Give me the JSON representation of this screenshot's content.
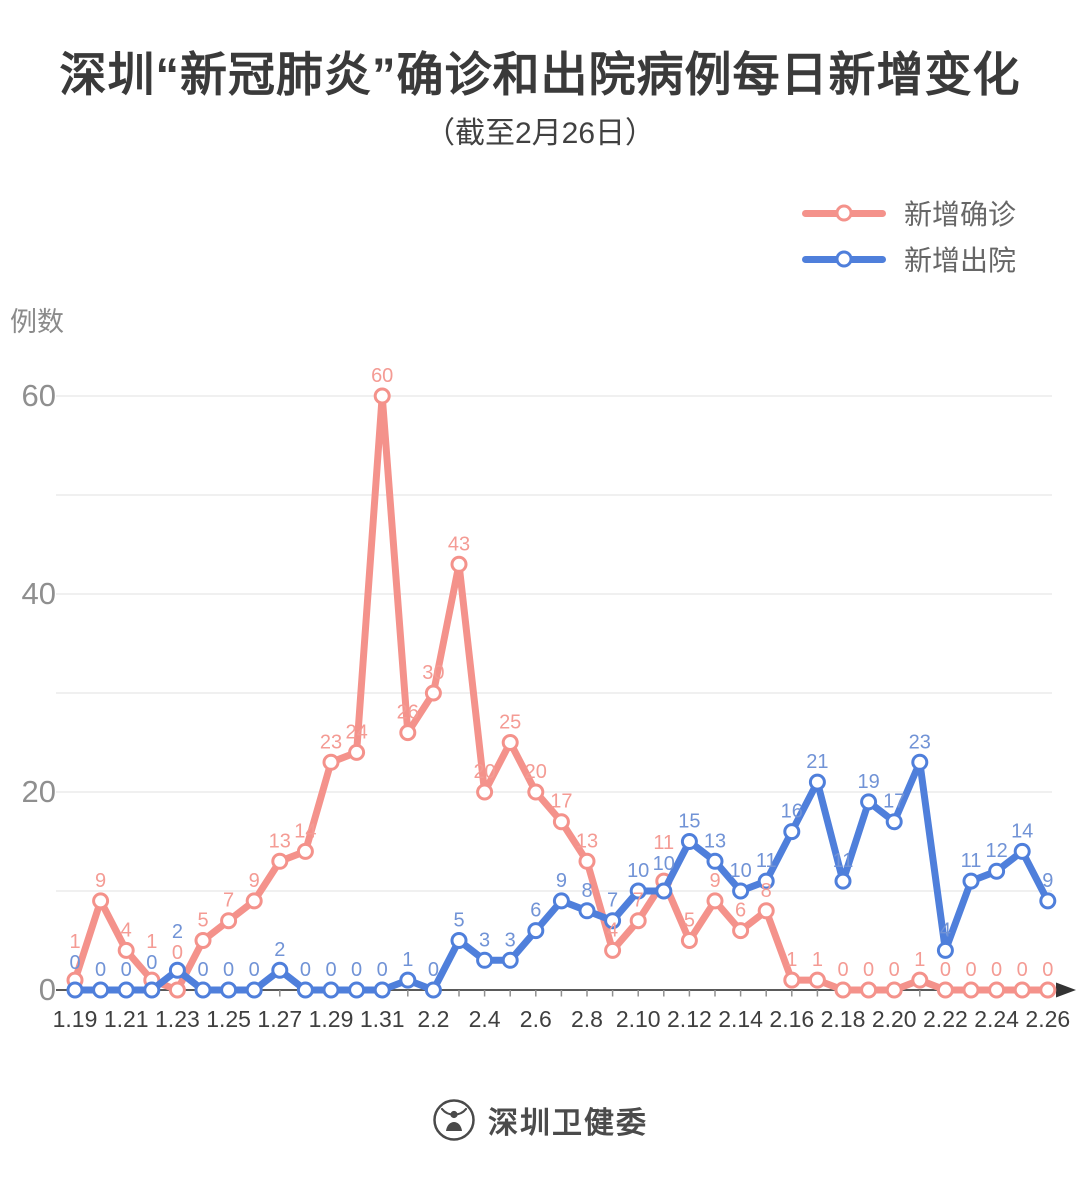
{
  "title": "深圳“新冠肺炎”确诊和出院病例每日新增变化",
  "subtitle": "（截至2月26日）",
  "y_axis_unit": "例数",
  "footer": {
    "source": "深圳卫健委"
  },
  "colors": {
    "confirmed": "#f4928b",
    "confirmed_label": "#f49b94",
    "discharged": "#4f7fdb",
    "discharged_label": "#7193d6",
    "grid": "#e8e8e8",
    "axis": "#5a5a5a",
    "x_tick_label": "#3f3f3f",
    "y_tick_label": "#8f8f8f"
  },
  "chart_data": {
    "type": "line",
    "title": "深圳“新冠肺炎”确诊和出院病例每日新增变化",
    "subtitle": "（截至2月26日）",
    "ylabel": "例数",
    "xlabel": "",
    "ylim": [
      0,
      60
    ],
    "yticks": [
      0,
      20,
      40,
      60
    ],
    "y_gridline_interval": 10,
    "grid": true,
    "legend_position": "top-right",
    "x_labels_shown_every": 2,
    "x": [
      "1.19",
      "1.20",
      "1.21",
      "1.22",
      "1.23",
      "1.24",
      "1.25",
      "1.26",
      "1.27",
      "1.28",
      "1.29",
      "1.30",
      "1.31",
      "2.1",
      "2.2",
      "2.3",
      "2.4",
      "2.5",
      "2.6",
      "2.7",
      "2.8",
      "2.9",
      "2.10",
      "2.11",
      "2.12",
      "2.13",
      "2.14",
      "2.15",
      "2.16",
      "2.17",
      "2.18",
      "2.19",
      "2.20",
      "2.21",
      "2.22",
      "2.23",
      "2.24",
      "2.25",
      "2.26"
    ],
    "series": [
      {
        "id": "confirmed",
        "name": "新增确诊",
        "color": "#f4928b",
        "label_color": "#f49b94",
        "values": [
          1,
          9,
          4,
          1,
          0,
          5,
          7,
          9,
          13,
          14,
          23,
          24,
          60,
          26,
          30,
          43,
          20,
          25,
          20,
          17,
          13,
          4,
          7,
          11,
          5,
          9,
          6,
          8,
          1,
          1,
          0,
          0,
          0,
          1,
          0,
          0,
          0,
          0,
          0
        ]
      },
      {
        "id": "discharged",
        "name": "新增出院",
        "color": "#4f7fdb",
        "label_color": "#7193d6",
        "values": [
          0,
          0,
          0,
          0,
          2,
          0,
          0,
          0,
          2,
          0,
          0,
          0,
          0,
          1,
          0,
          5,
          3,
          3,
          6,
          9,
          8,
          7,
          10,
          10,
          15,
          13,
          10,
          11,
          16,
          21,
          11,
          19,
          17,
          23,
          4,
          11,
          12,
          14,
          9
        ]
      }
    ]
  }
}
